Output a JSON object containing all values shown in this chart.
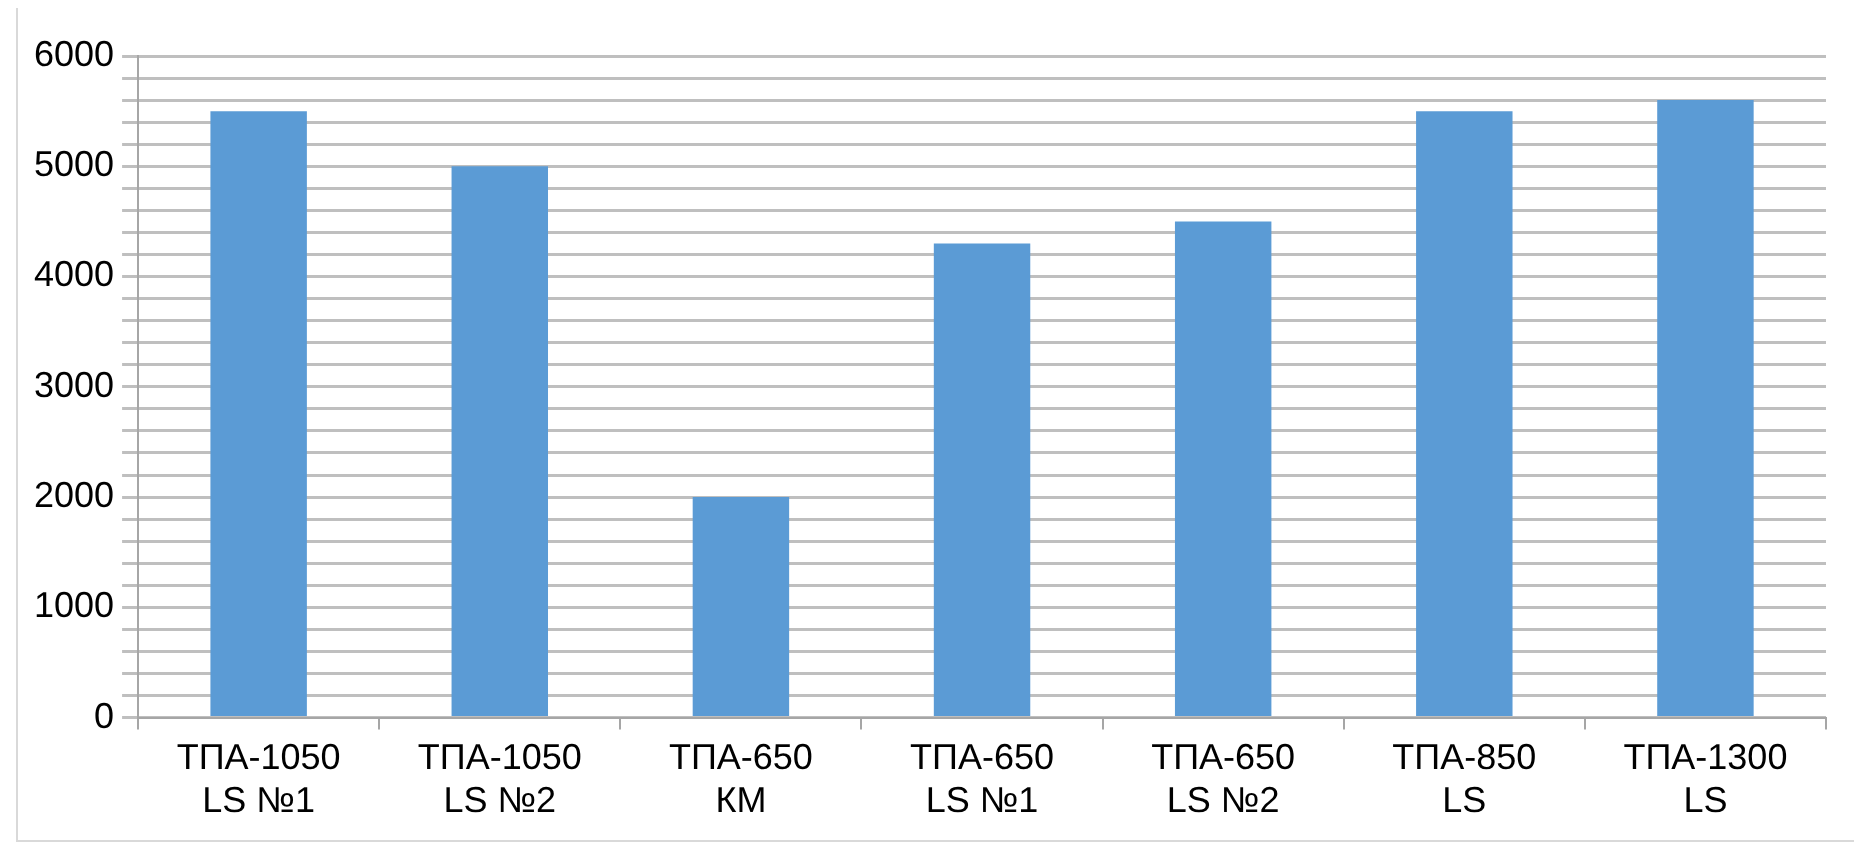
{
  "chart_data": {
    "type": "bar",
    "categories": [
      "ТПА-1050 LS №1",
      "ТПА-1050 LS №2",
      "ТПА-650 КМ",
      "ТПА-650 LS №1",
      "ТПА-650 LS №2",
      "ТПА-850 LS",
      "ТПА-1300 LS"
    ],
    "values": [
      5500,
      5000,
      2000,
      4300,
      4500,
      5500,
      5600
    ],
    "color": "#5b9bd5",
    "ylim": [
      0,
      6000
    ],
    "yticks": [
      0,
      {
        "value": 200,
        "label": null
      },
      {
        "value": 400,
        "label": null
      },
      {
        "value": 600,
        "label": null
      },
      {
        "value": 800,
        "label": null
      },
      1000,
      {
        "value": 1200,
        "label": null
      },
      {
        "value": 1400,
        "label": null
      },
      {
        "value": 1600,
        "label": null
      },
      {
        "value": 1800,
        "label": null
      },
      2000,
      {
        "value": 2200,
        "label": null
      },
      {
        "value": 2400,
        "label": null
      },
      {
        "value": 2600,
        "label": null
      },
      {
        "value": 2800,
        "label": null
      },
      3000,
      {
        "value": 3200,
        "label": null
      },
      {
        "value": 3400,
        "label": null
      },
      {
        "value": 3600,
        "label": null
      },
      {
        "value": 3800,
        "label": null
      },
      4000,
      {
        "value": 4200,
        "label": null
      },
      {
        "value": 4400,
        "label": null
      },
      {
        "value": 4600,
        "label": null
      },
      {
        "value": 4800,
        "label": null
      },
      5000,
      {
        "value": 5200,
        "label": null
      },
      {
        "value": 5400,
        "label": null
      },
      {
        "value": 5600,
        "label": null
      },
      {
        "value": 5800,
        "label": null
      },
      6000
    ],
    "grid": "y",
    "legend": false
  }
}
